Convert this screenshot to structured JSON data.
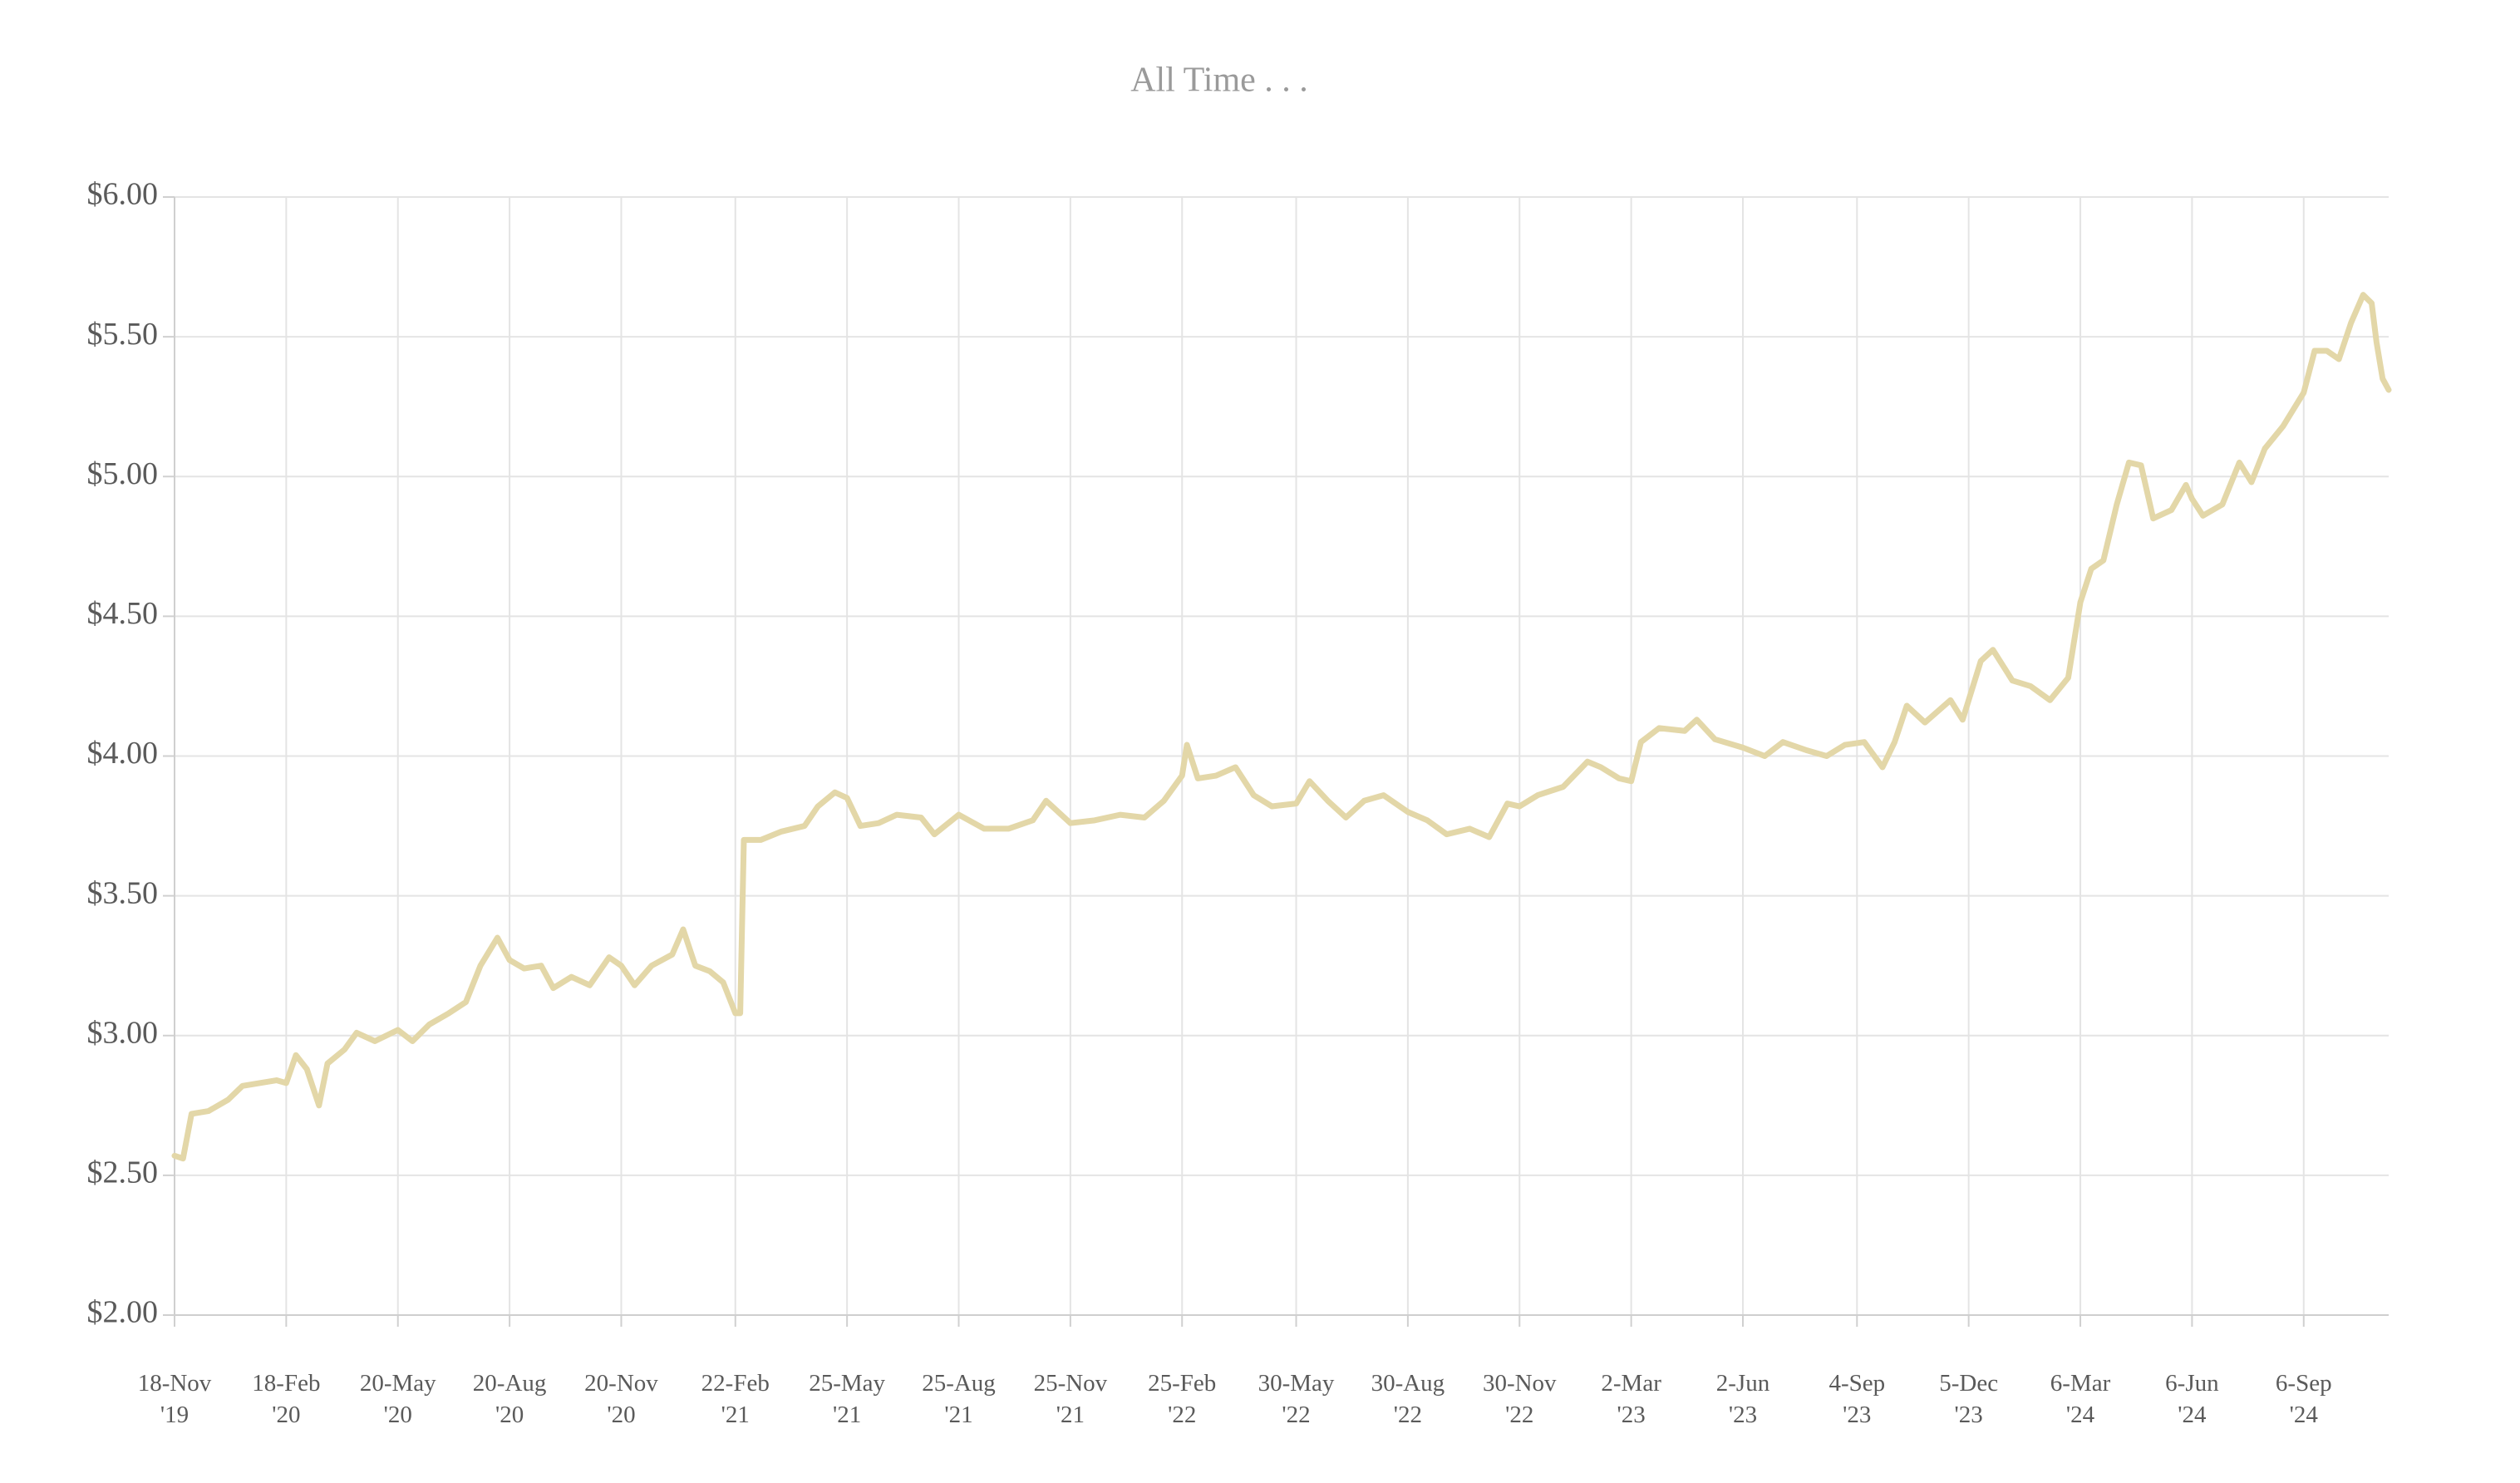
{
  "chart_data": {
    "type": "line",
    "title": "All Time . . .",
    "xlim": [
      "2019-11-18",
      "2024-11-15"
    ],
    "xticks": [
      {
        "value": "2019-11-18",
        "label": "18-Nov '19"
      },
      {
        "value": "2020-02-18",
        "label": "18-Feb '20"
      },
      {
        "value": "2020-05-20",
        "label": "20-May '20"
      },
      {
        "value": "2020-08-20",
        "label": "20-Aug '20"
      },
      {
        "value": "2020-11-20",
        "label": "20-Nov '20"
      },
      {
        "value": "2021-02-22",
        "label": "22-Feb '21"
      },
      {
        "value": "2021-05-25",
        "label": "25-May '21"
      },
      {
        "value": "2021-08-25",
        "label": "25-Aug '21"
      },
      {
        "value": "2021-11-25",
        "label": "25-Nov '21"
      },
      {
        "value": "2022-02-25",
        "label": "25-Feb '22"
      },
      {
        "value": "2022-05-30",
        "label": "30-May '22"
      },
      {
        "value": "2022-08-30",
        "label": "30-Aug '22"
      },
      {
        "value": "2022-11-30",
        "label": "30-Nov '22"
      },
      {
        "value": "2023-03-02",
        "label": "2-Mar '23"
      },
      {
        "value": "2023-06-02",
        "label": "2-Jun '23"
      },
      {
        "value": "2023-09-04",
        "label": "4-Sep '23"
      },
      {
        "value": "2023-12-05",
        "label": "5-Dec '23"
      },
      {
        "value": "2024-03-06",
        "label": "6-Mar '24"
      },
      {
        "value": "2024-06-06",
        "label": "6-Jun '24"
      },
      {
        "value": "2024-09-06",
        "label": "6-Sep '24"
      }
    ],
    "ylim": [
      2,
      6
    ],
    "yticks": [
      {
        "value": 2,
        "label": "$2.00"
      },
      {
        "value": 2.5,
        "label": "$2.50"
      },
      {
        "value": 3,
        "label": "$3.00"
      },
      {
        "value": 3.5,
        "label": "$3.50"
      },
      {
        "value": 4,
        "label": "$4.00"
      },
      {
        "value": 4.5,
        "label": "$4.50"
      },
      {
        "value": 5,
        "label": "$5.00"
      },
      {
        "value": 5.5,
        "label": "$5.50"
      },
      {
        "value": 6,
        "label": "$6.00"
      }
    ],
    "grid": true,
    "x": [
      "2019-11-18",
      "2019-11-25",
      "2019-12-02",
      "2019-12-16",
      "2020-01-01",
      "2020-01-13",
      "2020-01-27",
      "2020-02-10",
      "2020-02-18",
      "2020-02-26",
      "2020-03-06",
      "2020-03-16",
      "2020-03-23",
      "2020-04-06",
      "2020-04-16",
      "2020-05-01",
      "2020-05-20",
      "2020-06-01",
      "2020-06-15",
      "2020-07-01",
      "2020-07-15",
      "2020-07-27",
      "2020-08-10",
      "2020-08-20",
      "2020-09-01",
      "2020-09-15",
      "2020-09-25",
      "2020-10-10",
      "2020-10-25",
      "2020-11-10",
      "2020-11-20",
      "2020-12-01",
      "2020-12-15",
      "2021-01-01",
      "2021-01-10",
      "2021-01-20",
      "2021-02-01",
      "2021-02-12",
      "2021-02-22",
      "2021-02-26",
      "2021-03-01",
      "2021-03-15",
      "2021-04-01",
      "2021-04-20",
      "2021-05-01",
      "2021-05-15",
      "2021-05-25",
      "2021-06-05",
      "2021-06-20",
      "2021-07-05",
      "2021-07-25",
      "2021-08-05",
      "2021-08-25",
      "2021-09-15",
      "2021-10-05",
      "2021-10-25",
      "2021-11-05",
      "2021-11-25",
      "2021-12-15",
      "2022-01-05",
      "2022-01-25",
      "2022-02-10",
      "2022-02-25",
      "2022-03-01",
      "2022-03-10",
      "2022-03-25",
      "2022-04-10",
      "2022-04-25",
      "2022-05-10",
      "2022-05-30",
      "2022-06-10",
      "2022-06-25",
      "2022-07-10",
      "2022-07-25",
      "2022-08-10",
      "2022-08-30",
      "2022-09-15",
      "2022-10-01",
      "2022-10-20",
      "2022-11-05",
      "2022-11-20",
      "2022-11-30",
      "2022-12-15",
      "2023-01-05",
      "2023-01-25",
      "2023-02-05",
      "2023-02-20",
      "2023-03-02",
      "2023-03-10",
      "2023-03-25",
      "2023-04-15",
      "2023-04-25",
      "2023-05-10",
      "2023-06-02",
      "2023-06-20",
      "2023-07-05",
      "2023-07-25",
      "2023-08-10",
      "2023-08-25",
      "2023-09-10",
      "2023-09-25",
      "2023-10-05",
      "2023-10-15",
      "2023-10-30",
      "2023-11-20",
      "2023-11-30",
      "2023-12-15",
      "2023-12-25",
      "2024-01-10",
      "2024-01-25",
      "2024-02-10",
      "2024-02-25",
      "2024-03-06",
      "2024-03-15",
      "2024-03-25",
      "2024-04-05",
      "2024-04-15",
      "2024-04-25",
      "2024-05-05",
      "2024-05-20",
      "2024-06-01",
      "2024-06-06",
      "2024-06-15",
      "2024-07-01",
      "2024-07-15",
      "2024-07-25",
      "2024-08-05",
      "2024-08-20",
      "2024-09-06",
      "2024-09-15",
      "2024-09-25",
      "2024-10-05",
      "2024-10-15",
      "2024-10-25",
      "2024-11-01",
      "2024-11-05",
      "2024-11-10",
      "2024-11-15"
    ],
    "series": [
      {
        "color": "#e3d7a8",
        "values": [
          2.57,
          2.56,
          2.72,
          2.73,
          2.77,
          2.82,
          2.83,
          2.84,
          2.83,
          2.93,
          2.88,
          2.75,
          2.9,
          2.95,
          3.01,
          2.98,
          3.02,
          2.98,
          3.04,
          3.08,
          3.12,
          3.25,
          3.35,
          3.27,
          3.24,
          3.25,
          3.17,
          3.21,
          3.18,
          3.28,
          3.25,
          3.18,
          3.25,
          3.29,
          3.38,
          3.25,
          3.23,
          3.19,
          3.08,
          3.08,
          3.7,
          3.7,
          3.73,
          3.75,
          3.82,
          3.87,
          3.85,
          3.75,
          3.76,
          3.79,
          3.78,
          3.72,
          3.79,
          3.74,
          3.74,
          3.77,
          3.84,
          3.76,
          3.77,
          3.79,
          3.78,
          3.84,
          3.93,
          4.04,
          3.92,
          3.93,
          3.96,
          3.86,
          3.82,
          3.83,
          3.91,
          3.84,
          3.78,
          3.84,
          3.86,
          3.8,
          3.77,
          3.72,
          3.74,
          3.71,
          3.83,
          3.82,
          3.86,
          3.89,
          3.98,
          3.96,
          3.92,
          3.91,
          4.05,
          4.1,
          4.09,
          4.13,
          4.06,
          4.03,
          4.0,
          4.05,
          4.02,
          4.0,
          4.04,
          4.05,
          3.96,
          4.05,
          4.18,
          4.12,
          4.2,
          4.13,
          4.34,
          4.38,
          4.27,
          4.25,
          4.2,
          4.28,
          4.55,
          4.67,
          4.7,
          4.9,
          5.05,
          5.04,
          4.85,
          4.88,
          4.97,
          4.92,
          4.86,
          4.9,
          5.05,
          4.98,
          5.1,
          5.18,
          5.3,
          5.45,
          5.45,
          5.42,
          5.55,
          5.65,
          5.62,
          5.48,
          5.35,
          5.31
        ]
      }
    ]
  }
}
